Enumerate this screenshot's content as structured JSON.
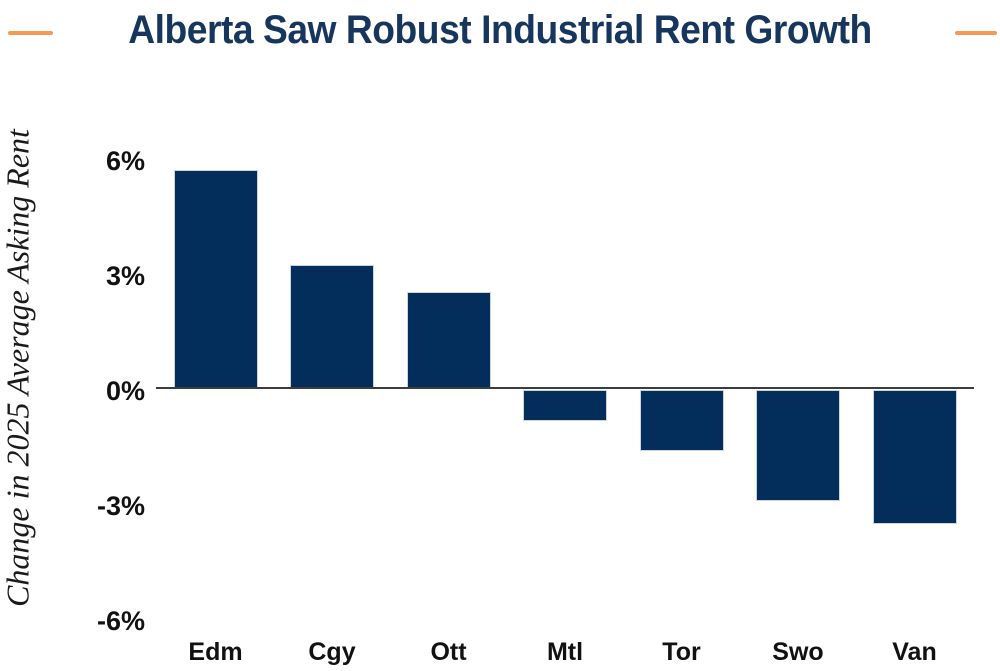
{
  "colors": {
    "background": "#FFFFFF",
    "accent_orange": "#F69954",
    "title_navy": "#17365D",
    "bar_navy": "#032D5A",
    "bar_border": "#CBD5DE",
    "axis_gray": "#3D3D3D",
    "tick_text": "#111111"
  },
  "header": {
    "accent_dash_left": "title-decoration",
    "accent_dash_right": "title-decoration"
  },
  "chart_data": {
    "type": "bar",
    "title": "Alberta Saw Robust Industrial Rent Growth",
    "ylabel": "Change in 2025 Average Asking Rent",
    "xlabel": "",
    "categories": [
      "Edm",
      "Cgy",
      "Ott",
      "Mtl",
      "Tor",
      "Swo",
      "Van"
    ],
    "values": [
      5.7,
      3.2,
      2.5,
      -0.8,
      -1.6,
      -2.9,
      -3.5
    ],
    "value_unit": "%",
    "yticks": [
      6,
      3,
      0,
      -3,
      -6
    ],
    "ytick_labels": [
      "6%",
      "3%",
      "0%",
      "-3%",
      "-6%"
    ],
    "ylim": [
      -6.5,
      6.3
    ],
    "grid": false,
    "legend": null,
    "bar_color": "#032D5A",
    "baseline": 0
  }
}
